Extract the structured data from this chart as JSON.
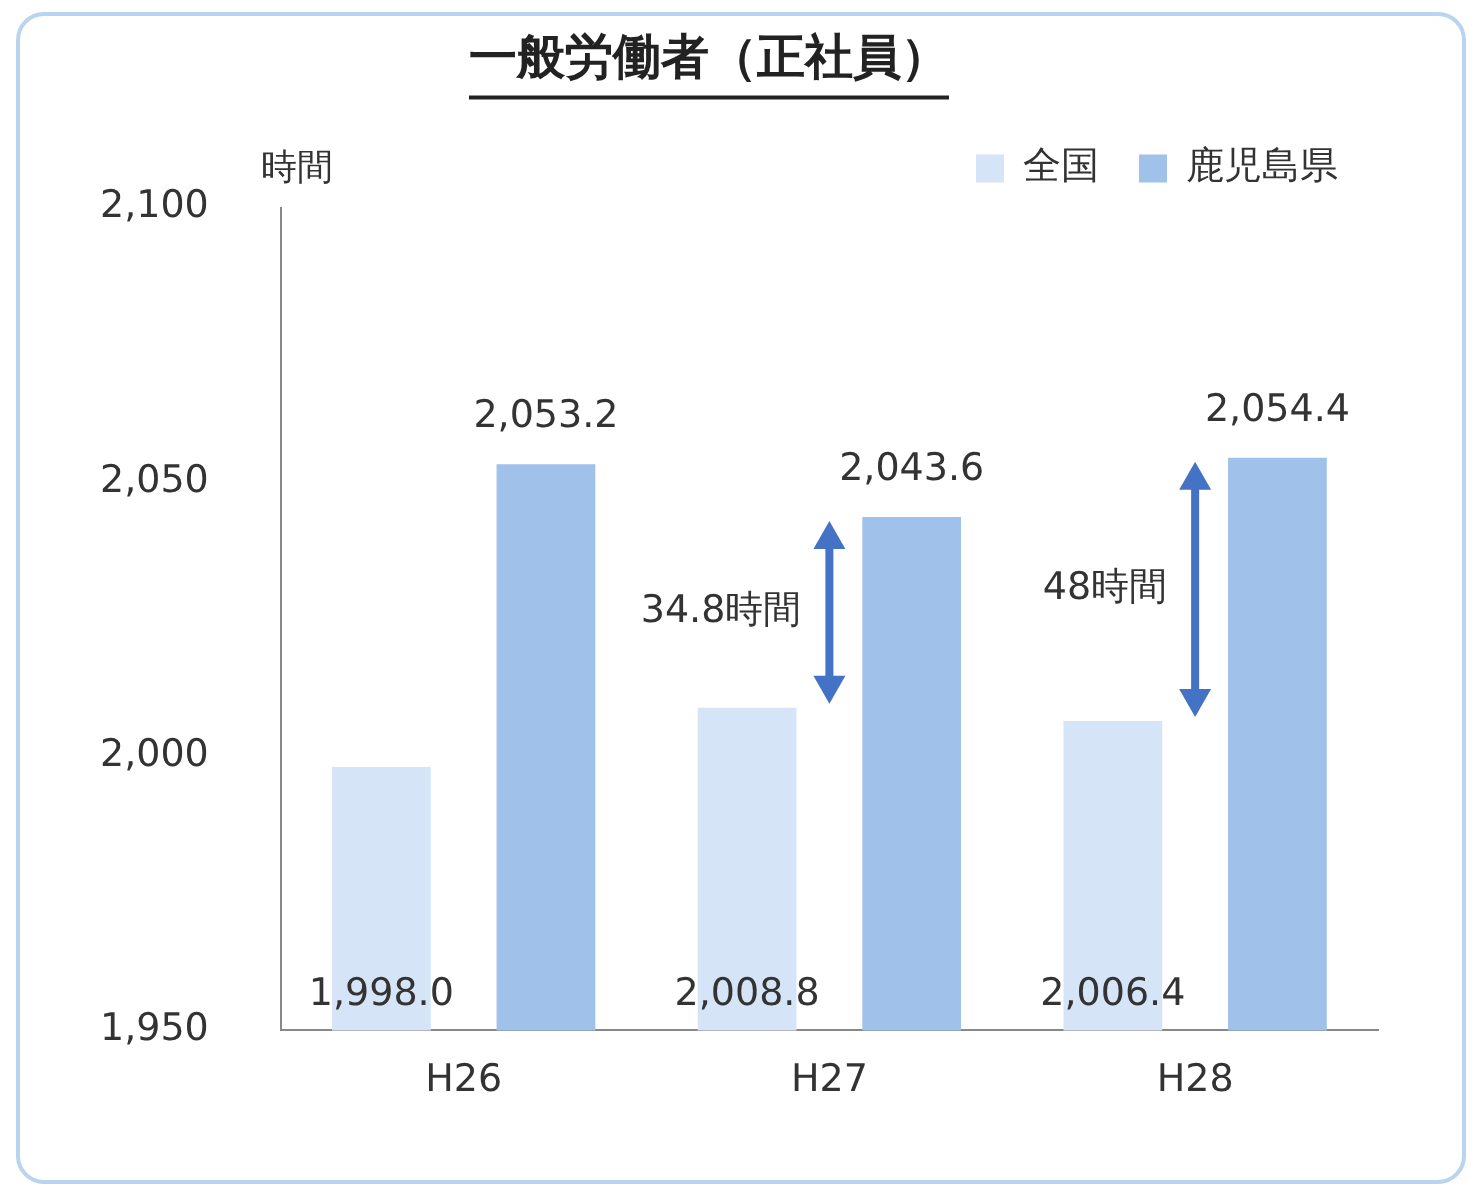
{
  "chart_data": {
    "type": "bar",
    "title": "一般労働者（正社員）",
    "ylabel": "時間",
    "categories": [
      "H26",
      "H27",
      "H28"
    ],
    "series": [
      {
        "name": "全国",
        "color": "#d6e4f7",
        "values": [
          1998.0,
          2008.8,
          2006.4
        ],
        "value_labels": [
          "1,998.0",
          "2,008.8",
          "2,006.4"
        ]
      },
      {
        "name": "鹿児島県",
        "color": "#9fc1ea",
        "values": [
          2053.2,
          2043.6,
          2054.4
        ],
        "value_labels": [
          "2,053.2",
          "2,043.6",
          "2,054.4"
        ]
      }
    ],
    "ylim": [
      1950,
      2100
    ],
    "yticks": [
      {
        "value": 1950,
        "label": "1,950"
      },
      {
        "value": 2000,
        "label": "2,000"
      },
      {
        "value": 2050,
        "label": "2,050"
      },
      {
        "value": 2100,
        "label": "2,100"
      }
    ],
    "grid": false,
    "legend": "top right",
    "annotations": [
      "34.8時間",
      "48時間"
    ]
  }
}
